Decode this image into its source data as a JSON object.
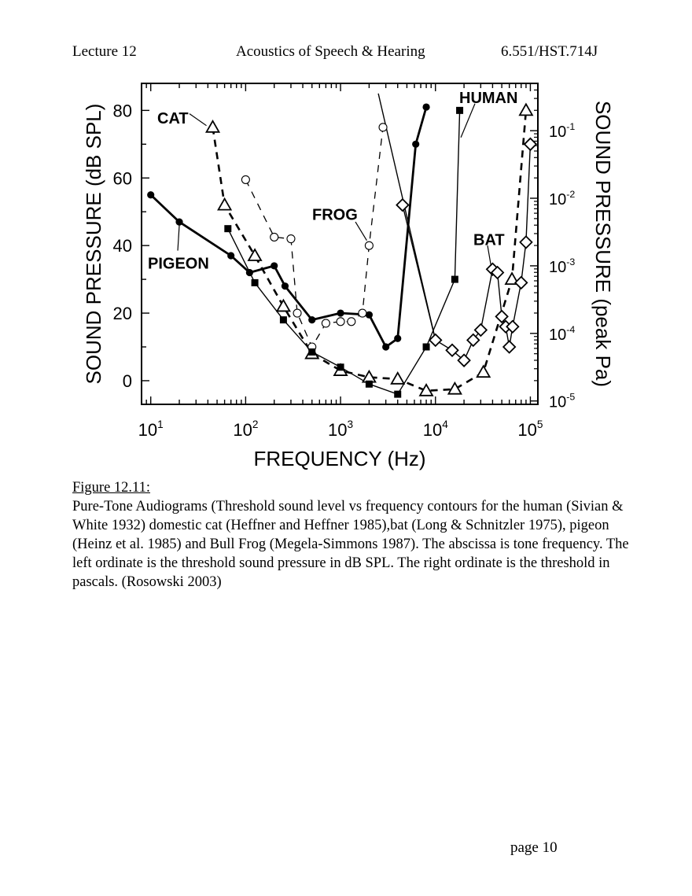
{
  "header": {
    "left": "Lecture 12",
    "center": "Acoustics of Speech & Hearing",
    "right": "6.551/HST.714J"
  },
  "caption": {
    "label": "Figure 12.11:",
    "text": "Pure-Tone Audiograms (Threshold sound level vs frequency contours for the human (Sivian & White 1932) domestic cat (Heffner and Heffner 1985),bat (Long & Schnitzler 1975), pigeon (Heinz et al. 1985) and Bull Frog (Megela-Simmons 1987). The abscissa is tone frequency.  The left ordinate is the threshold sound pressure in dB SPL.  The right ordinate is the threshold in pascals.  (Rosowski 2003)"
  },
  "footer": {
    "page": "page 10"
  },
  "chart_data": {
    "type": "line",
    "xlabel": "FREQUENCY (Hz)",
    "ylabel": "SOUND PRESSURE (dB SPL)",
    "y2label": "SOUND PRESSURE (peak Pa)",
    "x_scale": "log",
    "xlim": [
      8,
      120000
    ],
    "ylim": [
      -7,
      88
    ],
    "x_ticks": [
      10,
      100,
      1000,
      10000,
      100000
    ],
    "x_tick_labels": [
      {
        "base": "10",
        "exp": "1"
      },
      {
        "base": "10",
        "exp": "2"
      },
      {
        "base": "10",
        "exp": "3"
      },
      {
        "base": "10",
        "exp": "4"
      },
      {
        "base": "10",
        "exp": "5"
      }
    ],
    "y_ticks": [
      0,
      20,
      40,
      60,
      80
    ],
    "y_tick_labels": [
      "0",
      "20",
      "40",
      "60",
      "80"
    ],
    "y2_ticks": [
      {
        "db": -6,
        "base": "10",
        "exp": "-5"
      },
      {
        "db": 14,
        "base": "10",
        "exp": "-4"
      },
      {
        "db": 34,
        "base": "10",
        "exp": "-3"
      },
      {
        "db": 54,
        "base": "10",
        "exp": "-2"
      },
      {
        "db": 74,
        "base": "10",
        "exp": "-1"
      }
    ],
    "grid": false,
    "legend": "none",
    "series": [
      {
        "name": "PIGEON",
        "marker": "filled-circle",
        "line": "thick-solid",
        "points": [
          [
            10,
            55
          ],
          [
            20,
            47
          ],
          [
            70,
            37
          ],
          [
            110,
            32
          ],
          [
            200,
            34
          ],
          [
            260,
            28
          ],
          [
            500,
            18
          ],
          [
            1000,
            20
          ],
          [
            2000,
            19.5
          ],
          [
            3000,
            10
          ],
          [
            4000,
            12.5
          ],
          [
            6200,
            70
          ],
          [
            8000,
            81
          ]
        ]
      },
      {
        "name": "CAT",
        "marker": "open-triangle",
        "line": "thick-dashed",
        "points": [
          [
            45,
            75
          ],
          [
            60,
            52
          ],
          [
            125,
            37
          ],
          [
            250,
            22
          ],
          [
            500,
            8
          ],
          [
            1000,
            3
          ],
          [
            2000,
            1
          ],
          [
            4000,
            0.5
          ],
          [
            8000,
            -3
          ],
          [
            16000,
            -2.5
          ],
          [
            32000,
            2.5
          ],
          [
            64000,
            30
          ],
          [
            90000,
            80
          ]
        ]
      },
      {
        "name": "FROG",
        "marker": "open-circle",
        "line": "thin-dashed",
        "points": [
          [
            100,
            59.5
          ],
          [
            200,
            42.5
          ],
          [
            300,
            42
          ],
          [
            350,
            20
          ],
          [
            500,
            10
          ],
          [
            700,
            17
          ],
          [
            1000,
            17.5
          ],
          [
            1300,
            17.5
          ],
          [
            1700,
            20
          ],
          [
            2000,
            40
          ],
          [
            2800,
            75
          ]
        ]
      },
      {
        "name": "HUMAN",
        "marker": "filled-square",
        "line": "thin-solid",
        "points": [
          [
            65,
            45
          ],
          [
            125,
            29
          ],
          [
            250,
            18
          ],
          [
            500,
            8.5
          ],
          [
            1000,
            4
          ],
          [
            2000,
            -1
          ],
          [
            4000,
            -4
          ],
          [
            8000,
            10
          ],
          [
            16000,
            30
          ],
          [
            18000,
            80
          ]
        ]
      },
      {
        "name": "BAT",
        "marker": "open-diamond",
        "line": "thin-solid",
        "points": [
          [
            4500,
            52
          ],
          [
            10000,
            12
          ],
          [
            15000,
            9
          ],
          [
            20000,
            6
          ],
          [
            25000,
            12
          ],
          [
            30000,
            15
          ],
          [
            40000,
            33
          ],
          [
            45000,
            32
          ],
          [
            50000,
            19
          ],
          [
            55000,
            16
          ],
          [
            60000,
            10
          ],
          [
            65000,
            16
          ],
          [
            80000,
            29
          ],
          [
            90000,
            41
          ],
          [
            100000,
            70
          ]
        ]
      },
      {
        "name": "",
        "marker": "none",
        "line": "thin-solid",
        "points": [
          [
            2500,
            85
          ],
          [
            10000,
            12
          ]
        ]
      }
    ],
    "annotations": [
      {
        "text": "CAT",
        "target": [
          45,
          75
        ]
      },
      {
        "text": "PIGEON",
        "target": [
          20,
          47
        ]
      },
      {
        "text": "FROG",
        "target": [
          2000,
          40
        ]
      },
      {
        "text": "HUMAN",
        "target": [
          18000,
          75
        ]
      },
      {
        "text": "BAT",
        "target": [
          40000,
          33
        ]
      }
    ]
  }
}
